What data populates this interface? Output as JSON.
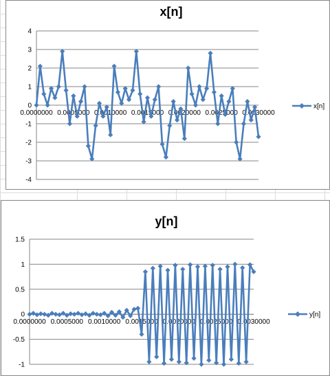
{
  "theme": {
    "series_color": "#4a7ebb",
    "gridline_color": "#868686",
    "axis_color": "#868686"
  },
  "chart_data": [
    {
      "type": "line",
      "title": "x[n]",
      "legend": [
        "x[n]"
      ],
      "legend_position": "right",
      "grid": true,
      "ylim": [
        -4,
        4
      ],
      "yticks": [
        "4",
        "3",
        "2",
        "1",
        "0",
        "-1",
        "-2",
        "-3",
        "-4"
      ],
      "xlim": [
        0,
        0.003
      ],
      "xticks": [
        "0.0000000",
        "0.0005000",
        "0.0010000",
        "0.0015000",
        "0.0020000",
        "0.0025000",
        "0.0030000"
      ],
      "series": [
        {
          "name": "x[n]",
          "x": [
            0.0,
            5e-05,
            0.0001,
            0.00015,
            0.0002,
            0.00025,
            0.0003,
            0.00035,
            0.0004,
            0.00045,
            0.0005,
            0.00055,
            0.0006,
            0.00065,
            0.0007,
            0.00075,
            0.0008,
            0.00085,
            0.0009,
            0.00095,
            0.001,
            0.00105,
            0.0011,
            0.00115,
            0.0012,
            0.00125,
            0.0013,
            0.00135,
            0.0014,
            0.00145,
            0.0015,
            0.00155,
            0.0016,
            0.00165,
            0.0017,
            0.00175,
            0.0018,
            0.00185,
            0.0019,
            0.00195,
            0.002,
            0.00205,
            0.0021,
            0.00215,
            0.0022,
            0.00225,
            0.0023,
            0.00235,
            0.0024,
            0.00245,
            0.0025,
            0.00255,
            0.0026,
            0.00265,
            0.0027,
            0.00275,
            0.0028,
            0.00285,
            0.0029,
            0.00295,
            0.003
          ],
          "y": [
            0.0,
            2.1,
            0.6,
            0.0,
            0.9,
            0.4,
            1.0,
            2.9,
            0.8,
            -1.0,
            0.5,
            -0.6,
            0.2,
            1.0,
            -2.2,
            -2.9,
            -1.1,
            0.1,
            -0.6,
            -0.1,
            -1.6,
            2.1,
            0.7,
            0.1,
            0.9,
            0.3,
            0.8,
            2.9,
            0.6,
            -0.9,
            0.4,
            -0.6,
            0.3,
            1.0,
            -2.1,
            -2.8,
            -1.1,
            0.2,
            -0.8,
            -0.2,
            -1.8,
            2.0,
            0.6,
            0.0,
            1.0,
            0.3,
            0.9,
            2.8,
            0.7,
            -1.0,
            0.5,
            -0.5,
            0.2,
            0.9,
            -2.0,
            -2.9,
            -1.0,
            0.2,
            -0.8,
            -0.1,
            -1.7
          ]
        }
      ]
    },
    {
      "type": "line",
      "title": "y[n]",
      "legend": [
        "y[n]"
      ],
      "legend_position": "right",
      "grid": true,
      "ylim": [
        -1,
        1.5
      ],
      "yticks": [
        "1.5",
        "1",
        "0.5",
        "0",
        "-0.5",
        "-1"
      ],
      "xlim": [
        0,
        0.003
      ],
      "xticks": [
        "0.0000000",
        "0.0005000",
        "0.0010000",
        "0.0015000",
        "0.0020000",
        "0.0025000",
        "0.0030000"
      ],
      "series": [
        {
          "name": "y[n]",
          "x": [
            0.0,
            5e-05,
            0.0001,
            0.00015,
            0.0002,
            0.00025,
            0.0003,
            0.00035,
            0.0004,
            0.00045,
            0.0005,
            0.00055,
            0.0006,
            0.00065,
            0.0007,
            0.00075,
            0.0008,
            0.00085,
            0.0009,
            0.00095,
            0.001,
            0.00105,
            0.0011,
            0.00115,
            0.0012,
            0.00125,
            0.0013,
            0.00135,
            0.0014,
            0.00145,
            0.0015,
            0.00155,
            0.0016,
            0.00165,
            0.0017,
            0.00175,
            0.0018,
            0.00185,
            0.0019,
            0.00195,
            0.002,
            0.00205,
            0.0021,
            0.00215,
            0.0022,
            0.00225,
            0.0023,
            0.00235,
            0.0024,
            0.00245,
            0.0025,
            0.00255,
            0.0026,
            0.00265,
            0.0027,
            0.00275,
            0.0028,
            0.00285,
            0.0029,
            0.00295,
            0.003
          ],
          "y": [
            0.0,
            0.02,
            -0.01,
            0.01,
            0.0,
            -0.02,
            0.02,
            0.0,
            -0.01,
            0.02,
            -0.02,
            0.01,
            0.0,
            0.02,
            -0.01,
            0.01,
            -0.02,
            0.02,
            0.0,
            -0.01,
            0.02,
            -0.03,
            0.04,
            -0.02,
            0.05,
            -0.06,
            0.08,
            -0.03,
            0.1,
            0.12,
            -0.4,
            0.85,
            -0.95,
            0.92,
            -0.85,
            0.96,
            -0.98,
            0.88,
            -0.9,
            0.98,
            -0.95,
            0.9,
            -0.97,
            0.99,
            -0.88,
            0.95,
            -1.0,
            0.96,
            -0.92,
            0.98,
            -0.97,
            0.9,
            -1.0,
            0.95,
            -0.9,
            1.0,
            -0.98,
            0.93,
            -0.95,
            0.99,
            0.85
          ]
        }
      ]
    }
  ]
}
